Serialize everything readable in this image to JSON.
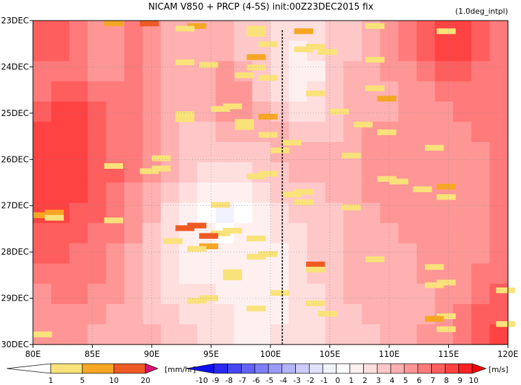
{
  "chart_data": {
    "type": "heatmap",
    "title": "NICAM  V850 + PRCP (4-5S) init:00Z23DEC2015 fix",
    "subtitle": "(1.0deg_intpl)",
    "x_axis": {
      "range": [
        80,
        120
      ],
      "ticks": [
        80,
        85,
        90,
        95,
        100,
        105,
        110,
        115,
        120
      ],
      "tick_labels": [
        "80E",
        "85E",
        "90E",
        "95E",
        "100E",
        "105E",
        "110E",
        "115E",
        "120E"
      ]
    },
    "y_axis": {
      "range_days": [
        "23DEC",
        "30DEC"
      ],
      "tick_labels": [
        "23DEC",
        "24DEC",
        "25DEC",
        "26DEC",
        "27DEC",
        "28DEC",
        "29DEC",
        "30DEC"
      ],
      "direction": "downward"
    },
    "reference_line": {
      "lon": 101,
      "style": "dashed"
    },
    "grid": true,
    "v850_field": [
      [
        7,
        7,
        6,
        5,
        5,
        6,
        5,
        4,
        4,
        4,
        4,
        3,
        3,
        2,
        2,
        2,
        3,
        3,
        4,
        5,
        6,
        7,
        8,
        8,
        7,
        6
      ],
      [
        7,
        7,
        6,
        5,
        5,
        6,
        5,
        4,
        4,
        4,
        4,
        3,
        3,
        2,
        1,
        2,
        3,
        3,
        4,
        5,
        6,
        7,
        8,
        8,
        7,
        6
      ],
      [
        6,
        6,
        6,
        5,
        5,
        6,
        5,
        4,
        4,
        4,
        5,
        4,
        3,
        2,
        1,
        1,
        3,
        4,
        4,
        5,
        5,
        6,
        7,
        7,
        6,
        6
      ],
      [
        6,
        7,
        7,
        6,
        6,
        6,
        5,
        4,
        4,
        4,
        5,
        5,
        3,
        2,
        1,
        2,
        3,
        4,
        4,
        4,
        5,
        5,
        6,
        6,
        6,
        6
      ],
      [
        7,
        8,
        8,
        7,
        6,
        6,
        5,
        4,
        4,
        4,
        5,
        5,
        4,
        3,
        2,
        2,
        3,
        4,
        4,
        4,
        5,
        5,
        5,
        6,
        6,
        6
      ],
      [
        8,
        8,
        8,
        7,
        6,
        6,
        5,
        4,
        3,
        3,
        4,
        4,
        4,
        4,
        3,
        3,
        3,
        4,
        5,
        5,
        5,
        5,
        5,
        5,
        6,
        6
      ],
      [
        8,
        8,
        8,
        7,
        6,
        6,
        5,
        4,
        3,
        3,
        3,
        3,
        3,
        4,
        4,
        4,
        4,
        4,
        5,
        5,
        5,
        5,
        5,
        5,
        5,
        6
      ],
      [
        8,
        8,
        8,
        7,
        7,
        6,
        5,
        4,
        3,
        2,
        2,
        2,
        3,
        3,
        4,
        4,
        4,
        4,
        5,
        5,
        5,
        5,
        5,
        5,
        5,
        6
      ],
      [
        8,
        8,
        8,
        7,
        6,
        5,
        4,
        3,
        2,
        1,
        1,
        1,
        2,
        3,
        3,
        3,
        4,
        4,
        5,
        5,
        5,
        5,
        5,
        5,
        5,
        6
      ],
      [
        8,
        8,
        7,
        7,
        6,
        5,
        4,
        2,
        1,
        0,
        -1,
        0,
        1,
        2,
        3,
        3,
        3,
        4,
        4,
        5,
        5,
        5,
        5,
        5,
        5,
        6
      ],
      [
        7,
        7,
        7,
        6,
        6,
        5,
        3,
        2,
        1,
        1,
        0,
        1,
        1,
        2,
        2,
        3,
        3,
        4,
        4,
        4,
        5,
        5,
        5,
        5,
        5,
        6
      ],
      [
        7,
        7,
        6,
        6,
        5,
        4,
        3,
        2,
        1,
        1,
        1,
        1,
        1,
        1,
        2,
        3,
        3,
        4,
        4,
        4,
        4,
        5,
        5,
        5,
        5,
        6
      ],
      [
        6,
        6,
        6,
        6,
        5,
        4,
        3,
        2,
        1,
        1,
        1,
        1,
        1,
        1,
        2,
        3,
        3,
        4,
        4,
        4,
        4,
        5,
        5,
        5,
        6,
        6
      ],
      [
        5,
        6,
        6,
        5,
        5,
        4,
        3,
        2,
        2,
        2,
        1,
        1,
        1,
        1,
        2,
        2,
        3,
        4,
        4,
        4,
        4,
        4,
        5,
        5,
        6,
        7
      ],
      [
        5,
        5,
        5,
        5,
        4,
        4,
        3,
        3,
        2,
        2,
        2,
        1,
        1,
        1,
        2,
        2,
        3,
        3,
        4,
        4,
        4,
        4,
        5,
        6,
        7,
        7
      ],
      [
        5,
        5,
        5,
        4,
        4,
        4,
        4,
        3,
        3,
        2,
        2,
        1,
        1,
        2,
        2,
        2,
        3,
        3,
        3,
        4,
        4,
        5,
        5,
        6,
        7,
        8
      ]
    ],
    "prcp_cells": [
      [
        0,
        2,
        2
      ],
      [
        1,
        2,
        2
      ],
      [
        0,
        3,
        3
      ],
      [
        2,
        3,
        1
      ],
      [
        2,
        5,
        1
      ],
      [
        3,
        4,
        2
      ],
      [
        4,
        4,
        1
      ],
      [
        1,
        7,
        1
      ],
      [
        3,
        8,
        1
      ],
      [
        8,
        6,
        1
      ],
      [
        9,
        5,
        1
      ],
      [
        10,
        6,
        1
      ],
      [
        11,
        8,
        1
      ],
      [
        13,
        5,
        2
      ],
      [
        14,
        6,
        1
      ],
      [
        15,
        2,
        1
      ],
      [
        16,
        4,
        1
      ],
      [
        17,
        3,
        1
      ],
      [
        20,
        3,
        1
      ],
      [
        21,
        5,
        1
      ],
      [
        25,
        6,
        1
      ],
      [
        27,
        7,
        1
      ],
      [
        29,
        8,
        2
      ],
      [
        32,
        4,
        1
      ],
      [
        33,
        5,
        1
      ],
      [
        34,
        6,
        1
      ],
      [
        35,
        3,
        1
      ],
      [
        36,
        3,
        2
      ],
      [
        37,
        2,
        1
      ],
      [
        38,
        5,
        1
      ],
      [
        39,
        6,
        1
      ],
      [
        40,
        4,
        1
      ],
      [
        42,
        7,
        1
      ],
      [
        43,
        5,
        1
      ],
      [
        46,
        6,
        1
      ],
      [
        48,
        9,
        1
      ],
      [
        49,
        6,
        1
      ],
      [
        51,
        7,
        1
      ],
      [
        52,
        3,
        1
      ],
      [
        55,
        2,
        1
      ],
      [
        56,
        1,
        1
      ],
      [
        57,
        2,
        1
      ],
      [
        58,
        3,
        1
      ],
      [
        59,
        4,
        1
      ],
      [
        60,
        9,
        1
      ],
      [
        61,
        7,
        1
      ],
      [
        63,
        11,
        2
      ],
      [
        64,
        8,
        1
      ],
      [
        65,
        6,
        1
      ],
      [
        66,
        7,
        1
      ],
      [
        67,
        9,
        1
      ],
      [
        69,
        4,
        1
      ],
      [
        70,
        3,
        1
      ],
      [
        71,
        8,
        1
      ],
      [
        73,
        12,
        2
      ],
      [
        74,
        13,
        2
      ],
      [
        75,
        11,
        1
      ],
      [
        76,
        14,
        1
      ],
      [
        78,
        2,
        3
      ],
      [
        79,
        3,
        3
      ],
      [
        80,
        2,
        1
      ],
      [
        81,
        3,
        1
      ],
      [
        82,
        4,
        3
      ],
      [
        83,
        3,
        1
      ],
      [
        84,
        2,
        1
      ],
      [
        86,
        2,
        2
      ],
      [
        87,
        3,
        1
      ],
      [
        89,
        4,
        1
      ],
      [
        90,
        5,
        1
      ],
      [
        91,
        6,
        1
      ],
      [
        93,
        7,
        3
      ],
      [
        94,
        8,
        1
      ],
      [
        95,
        6,
        1
      ],
      [
        96,
        5,
        1
      ],
      [
        98,
        4,
        1
      ],
      [
        100,
        9,
        1
      ],
      [
        101,
        10,
        1
      ],
      [
        103,
        11,
        1
      ],
      [
        104,
        6,
        1
      ],
      [
        106,
        3,
        1
      ],
      [
        107,
        4,
        1
      ],
      [
        108,
        5,
        1
      ],
      [
        110,
        6,
        1
      ],
      [
        112,
        7,
        1
      ],
      [
        113,
        8,
        1
      ],
      [
        114,
        9,
        2
      ],
      [
        116,
        10,
        1
      ],
      [
        118,
        11,
        1
      ],
      [
        120,
        12,
        1
      ]
    ],
    "colorbars": [
      {
        "unit": "[mm/hr]",
        "labels": [
          "1",
          "5",
          "10",
          "20"
        ],
        "colors": [
          "#ffffff",
          "#f9e27a",
          "#f5a623",
          "#ee5a24",
          "#dd1177"
        ]
      },
      {
        "unit": "[m/s]",
        "labels": [
          "-10",
          "-9",
          "-8",
          "-7",
          "-6",
          "-5",
          "-4",
          "-3",
          "-2",
          "-1",
          "0",
          "1",
          "2",
          "3",
          "4",
          "5",
          "6",
          "7",
          "8",
          "9",
          "10"
        ],
        "colors": [
          "#1010ee",
          "#2a2af0",
          "#4646f2",
          "#6262f4",
          "#7e7ef6",
          "#9a9af8",
          "#b4b4fa",
          "#ccccfc",
          "#e2e2fe",
          "#f2f2ff",
          "#ffffff",
          "#fff0f0",
          "#ffdede",
          "#ffc8c8",
          "#ffb0b0",
          "#ff9696",
          "#ff7a7a",
          "#ff5e5e",
          "#ff4242",
          "#ff2222",
          "#ff0000"
        ]
      }
    ]
  },
  "colors": {
    "prcp_yellow": "#f9e27a",
    "prcp_orange": "#f5a623",
    "prcp_red": "#ee5a24"
  }
}
